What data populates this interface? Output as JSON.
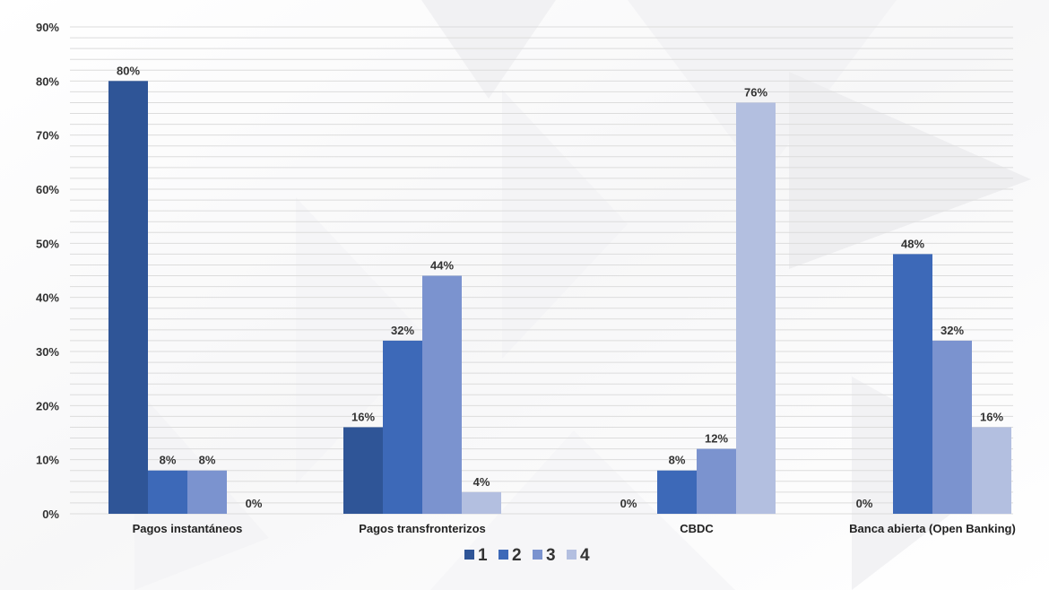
{
  "chart_data": {
    "type": "bar",
    "categories": [
      "Pagos instantáneos",
      "Pagos transfronterizos",
      "CBDC",
      "Banca abierta (Open Banking)"
    ],
    "series": [
      {
        "name": "1",
        "values": [
          80,
          16,
          0,
          0
        ],
        "labels": [
          "80%",
          "16%",
          "",
          "0%"
        ],
        "color": "#2f5597"
      },
      {
        "name": "2",
        "values": [
          8,
          32,
          8,
          48
        ],
        "labels": [
          "8%",
          "32%",
          "8%",
          "48%"
        ],
        "color": "#3d69b8"
      },
      {
        "name": "3",
        "values": [
          8,
          44,
          12,
          32
        ],
        "labels": [
          "8%",
          "44%",
          "12%",
          "32%"
        ],
        "color": "#7b93cf"
      },
      {
        "name": "4",
        "values": [
          0,
          4,
          76,
          16
        ],
        "labels": [
          "0%",
          "4%",
          "76%",
          "16%"
        ],
        "color": "#b3bfe0"
      }
    ],
    "cbdc_series1_label": "0%",
    "y_ticks": [
      "0%",
      "10%",
      "20%",
      "30%",
      "40%",
      "50%",
      "60%",
      "70%",
      "80%",
      "90%"
    ],
    "ylim": [
      0,
      90
    ],
    "grid": true,
    "legend_position": "bottom-center"
  }
}
